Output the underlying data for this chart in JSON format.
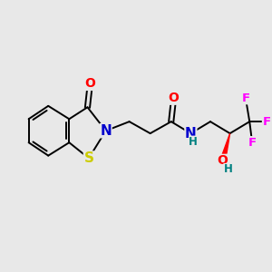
{
  "background_color": "#e8e8e8",
  "fig_size": [
    3.0,
    3.0
  ],
  "dpi": 100,
  "atom_colors": {
    "C": "#000000",
    "N": "#0000cd",
    "O": "#ff0000",
    "S": "#cccc00",
    "F": "#ff00ff",
    "OH_color": "#008080",
    "H_color": "#008080"
  },
  "bond_color": "#000000",
  "bond_width": 1.4,
  "font_size": 9.5
}
